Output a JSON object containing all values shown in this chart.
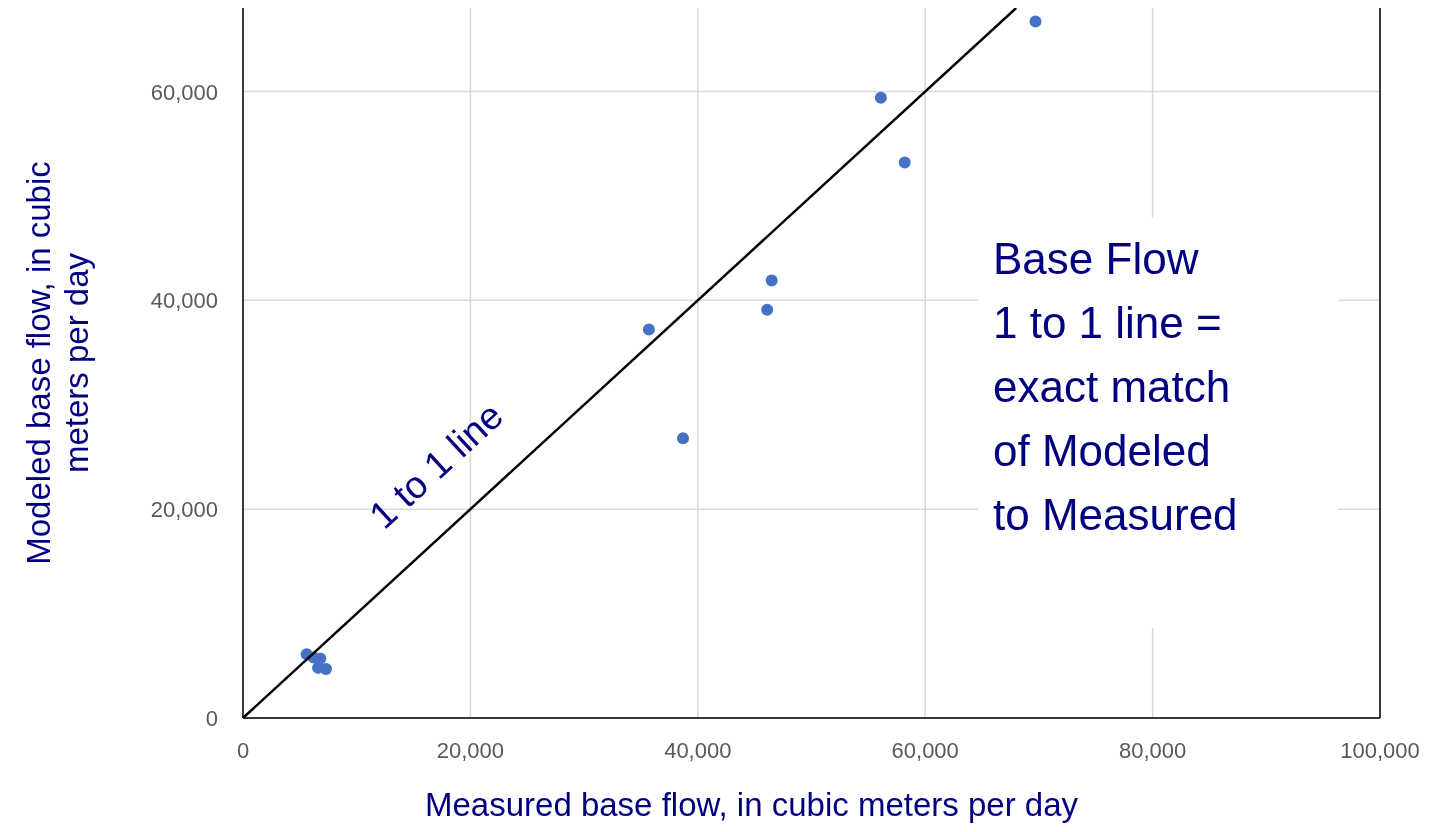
{
  "chart_data": {
    "type": "scatter",
    "xlabel": "Measured base flow, in cubic meters per day",
    "ylabel": "Modeled base flow, in cubic\nmeters per day",
    "xlim": [
      0,
      100000
    ],
    "ylim": [
      0,
      68000
    ],
    "xticks": [
      {
        "value": 0,
        "label": "0"
      },
      {
        "value": 20000,
        "label": "20,000"
      },
      {
        "value": 40000,
        "label": "40,000"
      },
      {
        "value": 60000,
        "label": "60,000"
      },
      {
        "value": 80000,
        "label": "80,000"
      },
      {
        "value": 100000,
        "label": "100,000"
      }
    ],
    "yticks": [
      {
        "value": 0,
        "label": "0"
      },
      {
        "value": 20000,
        "label": "20,000"
      },
      {
        "value": 40000,
        "label": "40,000"
      },
      {
        "value": 60000,
        "label": "60,000"
      }
    ],
    "grid": true,
    "series": [
      {
        "marker": "circle",
        "color": "#4472c4",
        "x": [
          5600,
          6200,
          6800,
          6600,
          7300,
          35700,
          38700,
          46100,
          46500,
          56100,
          58200,
          69700
        ],
        "values": [
          6100,
          5800,
          5700,
          4800,
          4700,
          37200,
          26800,
          39100,
          41900,
          59400,
          53200,
          66700
        ]
      },
      {
        "type": "line",
        "name": "1 to 1 line",
        "color": "#000000",
        "x": [
          0,
          68000
        ],
        "values": [
          0,
          68000
        ]
      }
    ],
    "annotations": [
      "Base Flow\n\n1 to 1 line =\nexact match\nof Modeled\nto Measured"
    ]
  }
}
